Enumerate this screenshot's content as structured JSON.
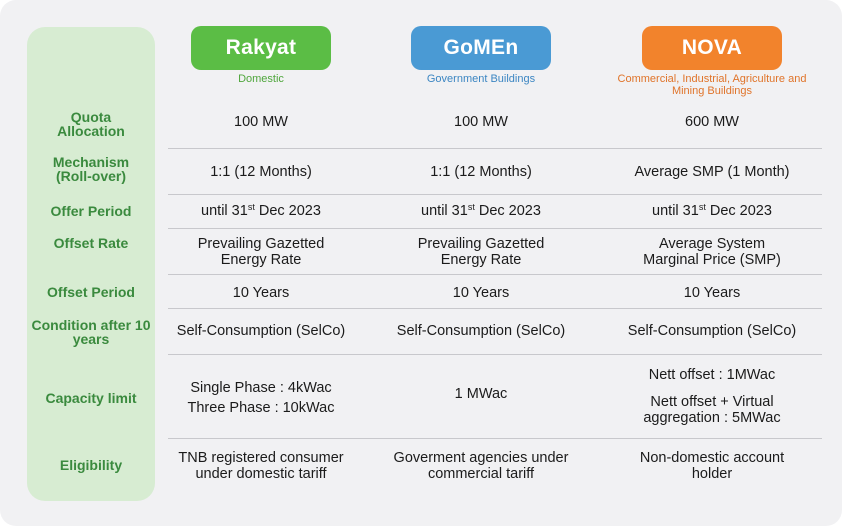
{
  "columns": [
    {
      "name": "Rakyat",
      "subtitle": "Domestic",
      "color": "#5bbd45"
    },
    {
      "name": "GoMEn",
      "subtitle": "Government Buildings",
      "color": "#4a9ad4"
    },
    {
      "name": "NOVA",
      "subtitle": "Commercial, Industrial, Agriculture and Mining Buildings",
      "color": "#f2832c"
    }
  ],
  "row_labels": {
    "quota": "Quota Allocation",
    "mechanism": "Mechanism (Roll-over)",
    "offer_period": "Offer Period",
    "offset_rate": "Offset Rate",
    "offset_period": "Offset Period",
    "condition": "Condition after 10 years",
    "capacity": "Capacity limit",
    "eligibility": "Eligibility"
  },
  "cells": {
    "quota": [
      "100 MW",
      "100 MW",
      "600 MW"
    ],
    "mechanism": [
      "1:1 (12 Months)",
      "1:1 (12 Months)",
      "Average SMP (1 Month)"
    ],
    "offer_period": {
      "prefix": "until 31",
      "sup": "st",
      "suffix": " Dec 2023"
    },
    "offset_rate": [
      "Prevailing Gazetted Energy Rate",
      "Prevailing Gazetted Energy Rate",
      "Average System Marginal Price (SMP)"
    ],
    "offset_period": [
      "10 Years",
      "10 Years",
      "10 Years"
    ],
    "condition": [
      "Self-Consumption (SelCo)",
      "Self-Consumption (SelCo)",
      "Self-Consumption (SelCo)"
    ],
    "capacity": {
      "rakyat_line1": "Single Phase : 4kWac",
      "rakyat_line2": "Three Phase : 10kWac",
      "gomen": "1 MWac",
      "nova_line1": "Nett offset : 1MWac",
      "nova_line2": "Nett offset + Virtual aggregation : 5MWac"
    },
    "eligibility": [
      "TNB registered consumer under domestic tariff",
      "Goverment agencies under commercial tariff",
      "Non-domestic account holder"
    ]
  }
}
